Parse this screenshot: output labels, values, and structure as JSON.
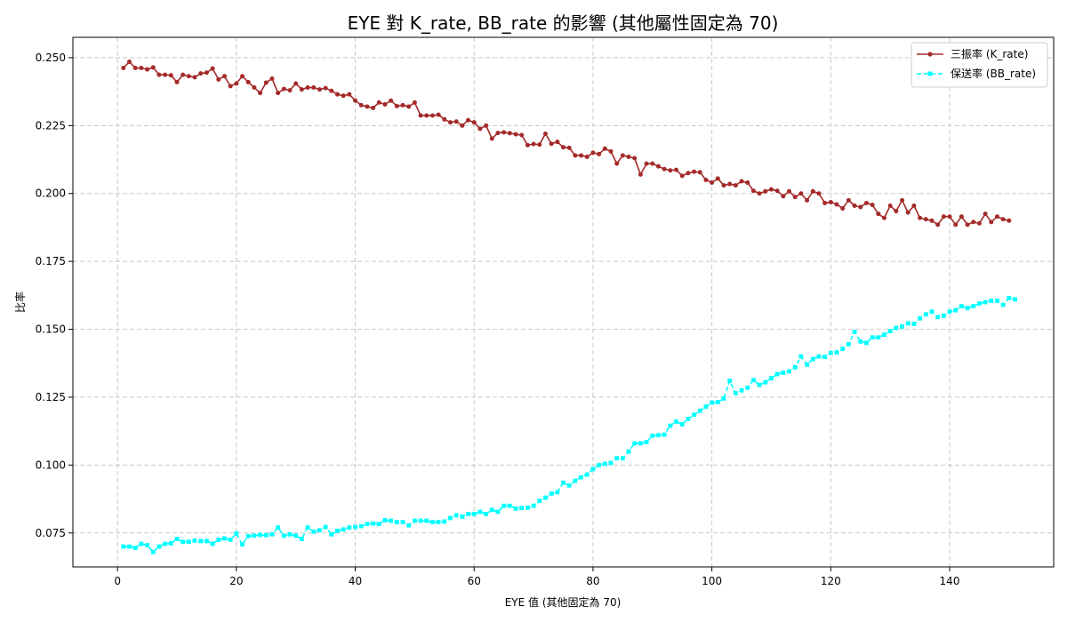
{
  "chart_data": {
    "type": "line",
    "title": "EYE 對 K_rate, BB_rate 的影響 (其他屬性固定為 70)",
    "xlabel": "EYE 值 (其他固定為 70)",
    "ylabel": "比率",
    "xlim": [
      -7.5,
      157.5
    ],
    "ylim": [
      0.0625,
      0.2575
    ],
    "x_ticks": [
      0,
      20,
      40,
      60,
      80,
      100,
      120,
      140
    ],
    "y_ticks": [
      0.075,
      0.1,
      0.125,
      0.15,
      0.175,
      0.2,
      0.225,
      0.25
    ],
    "y_tick_labels": [
      "0.075",
      "0.100",
      "0.125",
      "0.150",
      "0.175",
      "0.200",
      "0.225",
      "0.250"
    ],
    "grid": true,
    "legend_position": "top-right",
    "x_start": 1,
    "x_step": 1,
    "series": [
      {
        "name": "三振率 (K_rate)",
        "color": "#a52a2a",
        "line_style": "solid",
        "marker": "circle",
        "values": [
          0.2462,
          0.2485,
          0.2462,
          0.2462,
          0.2457,
          0.2464,
          0.2437,
          0.2437,
          0.2435,
          0.241,
          0.2437,
          0.2432,
          0.2428,
          0.2442,
          0.2445,
          0.246,
          0.242,
          0.2432,
          0.2395,
          0.2405,
          0.2432,
          0.241,
          0.239,
          0.237,
          0.2408,
          0.2423,
          0.237,
          0.2385,
          0.238,
          0.2405,
          0.2383,
          0.239,
          0.239,
          0.2383,
          0.2388,
          0.2378,
          0.2365,
          0.236,
          0.2365,
          0.2342,
          0.2325,
          0.232,
          0.2315,
          0.2335,
          0.2328,
          0.2342,
          0.2322,
          0.2325,
          0.232,
          0.2335,
          0.2287,
          0.2287,
          0.2287,
          0.229,
          0.2273,
          0.2262,
          0.2265,
          0.225,
          0.227,
          0.2262,
          0.2238,
          0.225,
          0.2202,
          0.2223,
          0.2225,
          0.2222,
          0.2218,
          0.2215,
          0.2178,
          0.2182,
          0.218,
          0.222,
          0.2183,
          0.219,
          0.217,
          0.2168,
          0.214,
          0.214,
          0.2135,
          0.215,
          0.2145,
          0.2165,
          0.2155,
          0.211,
          0.214,
          0.2135,
          0.213,
          0.207,
          0.211,
          0.211,
          0.21,
          0.209,
          0.2085,
          0.2087,
          0.2065,
          0.2075,
          0.208,
          0.2078,
          0.205,
          0.204,
          0.2055,
          0.203,
          0.2035,
          0.203,
          0.2045,
          0.204,
          0.201,
          0.2,
          0.2008,
          0.2015,
          0.201,
          0.199,
          0.2008,
          0.1987,
          0.2,
          0.1975,
          0.2008,
          0.2,
          0.1965,
          0.1968,
          0.196,
          0.1945,
          0.1975,
          0.1955,
          0.195,
          0.1965,
          0.1958,
          0.1925,
          0.191,
          0.1955,
          0.1935,
          0.1975,
          0.193,
          0.1955,
          0.191,
          0.1905,
          0.19,
          0.1885,
          0.1915,
          0.1915,
          0.1885,
          0.1915,
          0.1885,
          0.1895,
          0.189,
          0.1925,
          0.1895,
          0.1915,
          0.1905,
          0.19
        ]
      },
      {
        "name": "保送率 (BB_rate)",
        "color": "#00ffff",
        "line_style": "dashed",
        "marker": "square",
        "values": [
          0.07,
          0.07,
          0.0695,
          0.071,
          0.0705,
          0.068,
          0.07,
          0.071,
          0.0712,
          0.0728,
          0.0717,
          0.0718,
          0.0722,
          0.072,
          0.072,
          0.071,
          0.0725,
          0.073,
          0.0725,
          0.0748,
          0.0708,
          0.0738,
          0.074,
          0.0743,
          0.0742,
          0.0745,
          0.077,
          0.074,
          0.0745,
          0.074,
          0.0728,
          0.077,
          0.0755,
          0.076,
          0.0772,
          0.0745,
          0.0758,
          0.0763,
          0.077,
          0.0772,
          0.0775,
          0.0783,
          0.0785,
          0.0783,
          0.0797,
          0.0795,
          0.079,
          0.079,
          0.0778,
          0.0795,
          0.0795,
          0.0795,
          0.079,
          0.079,
          0.0792,
          0.0805,
          0.0815,
          0.081,
          0.082,
          0.082,
          0.0828,
          0.082,
          0.0835,
          0.0828,
          0.085,
          0.085,
          0.084,
          0.0842,
          0.0843,
          0.085,
          0.0868,
          0.088,
          0.0895,
          0.09,
          0.0935,
          0.0925,
          0.0942,
          0.0955,
          0.0965,
          0.0985,
          0.1,
          0.1005,
          0.1008,
          0.1025,
          0.1025,
          0.105,
          0.108,
          0.108,
          0.1085,
          0.1108,
          0.111,
          0.1112,
          0.1145,
          0.116,
          0.115,
          0.117,
          0.1185,
          0.12,
          0.1215,
          0.123,
          0.1232,
          0.1245,
          0.131,
          0.1265,
          0.1275,
          0.1285,
          0.1313,
          0.1295,
          0.1305,
          0.132,
          0.1335,
          0.134,
          0.1345,
          0.136,
          0.14,
          0.137,
          0.139,
          0.14,
          0.1398,
          0.1413,
          0.1415,
          0.1428,
          0.1445,
          0.149,
          0.1455,
          0.145,
          0.147,
          0.147,
          0.148,
          0.1493,
          0.1505,
          0.151,
          0.1522,
          0.152,
          0.154,
          0.1555,
          0.1565,
          0.1545,
          0.155,
          0.1565,
          0.157,
          0.1585,
          0.1578,
          0.1585,
          0.1595,
          0.16,
          0.1605,
          0.1605,
          0.159,
          0.1615,
          0.161
        ]
      }
    ]
  }
}
